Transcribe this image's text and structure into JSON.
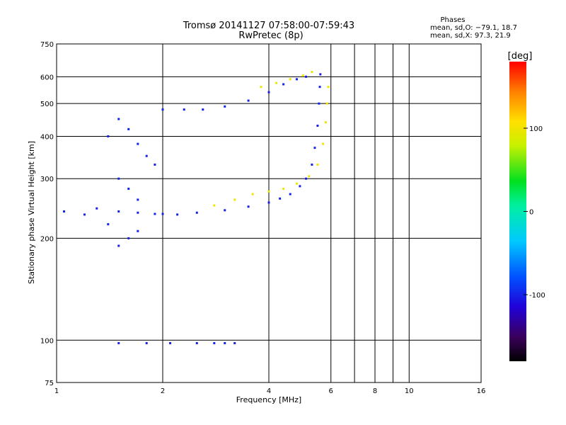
{
  "chart_data": {
    "type": "scatter",
    "title": "Tromsø 20141127 07:58:00-07:59:43",
    "subtitle": "RwPretec (8p)",
    "xlabel": "Frequency [MHz]",
    "ylabel": "Stationary phase Virtual Height [km]",
    "x_scale": "log",
    "y_scale": "log",
    "xlim": [
      1,
      16
    ],
    "ylim": [
      75,
      750
    ],
    "x_ticks": [
      1,
      2,
      4,
      6,
      8,
      10,
      16
    ],
    "y_ticks": [
      75,
      100,
      200,
      300,
      400,
      500,
      600,
      750
    ],
    "x_gridlines": [
      2,
      4,
      6,
      7,
      8,
      9,
      10
    ],
    "y_gridlines": [
      100,
      200,
      300,
      400,
      500,
      600
    ],
    "grid": true,
    "phase_info": {
      "header": "Phases",
      "line_o": "mean, sd,O: −79.1, 18.7",
      "line_x": "mean, sd,X:  97.3, 21.9"
    },
    "colorbar": {
      "label": "[deg]",
      "range": [
        -180,
        180
      ],
      "ticks": [
        100,
        0,
        -100
      ],
      "tick_labels": [
        "100",
        "0",
        "-100"
      ]
    },
    "series": [
      {
        "trace": "O-mode lower trace",
        "points": [
          [
            1.05,
            240
          ],
          [
            1.2,
            235
          ],
          [
            1.3,
            245
          ],
          [
            1.5,
            240
          ],
          [
            1.7,
            238
          ],
          [
            1.9,
            236
          ],
          [
            2.0,
            236
          ],
          [
            2.2,
            235
          ],
          [
            2.5,
            238
          ],
          [
            3.0,
            242
          ],
          [
            3.5,
            248
          ],
          [
            4.0,
            255
          ],
          [
            4.3,
            262
          ],
          [
            4.6,
            270
          ],
          [
            4.9,
            285
          ],
          [
            5.1,
            300
          ],
          [
            5.3,
            330
          ],
          [
            5.4,
            370
          ],
          [
            5.5,
            430
          ],
          [
            5.55,
            500
          ],
          [
            5.58,
            560
          ],
          [
            5.6,
            610
          ]
        ],
        "phase": -100
      },
      {
        "trace": "Upper trace",
        "points": [
          [
            2.0,
            480
          ],
          [
            2.3,
            480
          ],
          [
            2.6,
            480
          ],
          [
            3.0,
            490
          ],
          [
            3.5,
            510
          ],
          [
            4.0,
            540
          ],
          [
            4.4,
            570
          ],
          [
            4.8,
            590
          ],
          [
            5.1,
            600
          ]
        ],
        "phase": -100
      },
      {
        "trace": "X-mode trace",
        "points": [
          [
            2.8,
            250
          ],
          [
            3.2,
            260
          ],
          [
            3.6,
            270
          ],
          [
            4.0,
            275
          ],
          [
            4.4,
            280
          ],
          [
            4.8,
            290
          ],
          [
            5.2,
            305
          ],
          [
            5.5,
            330
          ],
          [
            5.7,
            380
          ],
          [
            5.8,
            440
          ],
          [
            5.85,
            500
          ],
          [
            5.9,
            560
          ]
        ],
        "phase": 100
      },
      {
        "trace": "Upper trace (high phase)",
        "points": [
          [
            3.8,
            560
          ],
          [
            4.2,
            575
          ],
          [
            4.6,
            590
          ],
          [
            5.0,
            605
          ],
          [
            5.3,
            620
          ]
        ],
        "phase": 100
      },
      {
        "trace": "Lower E-region echoes",
        "points": [
          [
            1.5,
            98
          ],
          [
            1.8,
            98
          ],
          [
            2.1,
            98
          ],
          [
            2.5,
            98
          ],
          [
            2.8,
            98
          ],
          [
            3.0,
            98
          ],
          [
            3.2,
            98
          ]
        ],
        "phase": -100
      },
      {
        "trace": "Spread echoes",
        "points": [
          [
            1.4,
            400
          ],
          [
            1.5,
            450
          ],
          [
            1.6,
            420
          ],
          [
            1.7,
            380
          ],
          [
            1.8,
            350
          ],
          [
            1.9,
            330
          ],
          [
            1.5,
            300
          ],
          [
            1.6,
            280
          ],
          [
            1.7,
            260
          ],
          [
            1.4,
            220
          ],
          [
            1.5,
            190
          ],
          [
            1.6,
            200
          ],
          [
            1.7,
            210
          ]
        ],
        "phase": -100
      }
    ]
  }
}
